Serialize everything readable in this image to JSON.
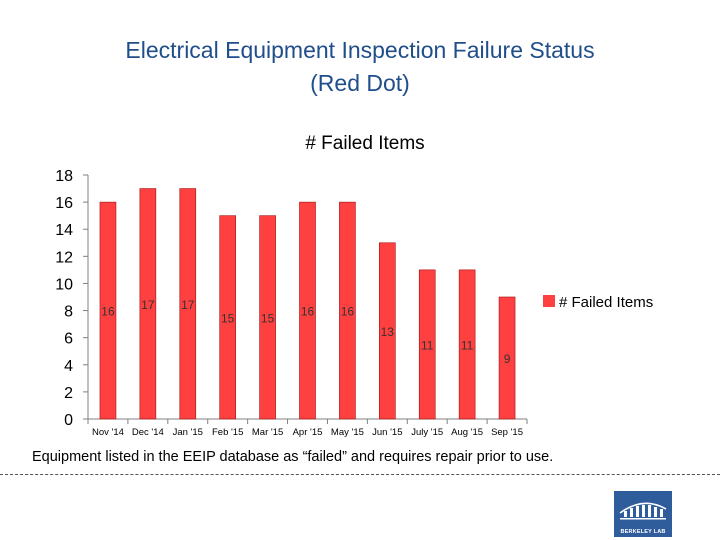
{
  "slide": {
    "title_line1": "Electrical Equipment Inspection Failure Status",
    "title_line2": "(Red Dot)",
    "caption": "Equipment listed in the EEIP database as “failed” and requires repair prior to use.",
    "logo_text": "BERKELEY LAB"
  },
  "chart_data": {
    "type": "bar",
    "title": "# Failed Items",
    "categories": [
      "Nov '14",
      "Dec '14",
      "Jan '15",
      "Feb '15",
      "Mar '15",
      "Apr '15",
      "May '15",
      "Jun '15",
      "July '15",
      "Aug '15",
      "Sep '15"
    ],
    "series": [
      {
        "name": "# Failed Items",
        "values": [
          16,
          17,
          17,
          15,
          15,
          16,
          16,
          13,
          11,
          11,
          9
        ],
        "color": "#ff4040"
      }
    ],
    "ylim": [
      0,
      18
    ],
    "yticks": [
      0,
      2,
      4,
      6,
      8,
      10,
      12,
      14,
      16,
      18
    ],
    "xlabel": "",
    "ylabel": "",
    "grid": false,
    "legend_position": "right",
    "data_labels": true
  }
}
